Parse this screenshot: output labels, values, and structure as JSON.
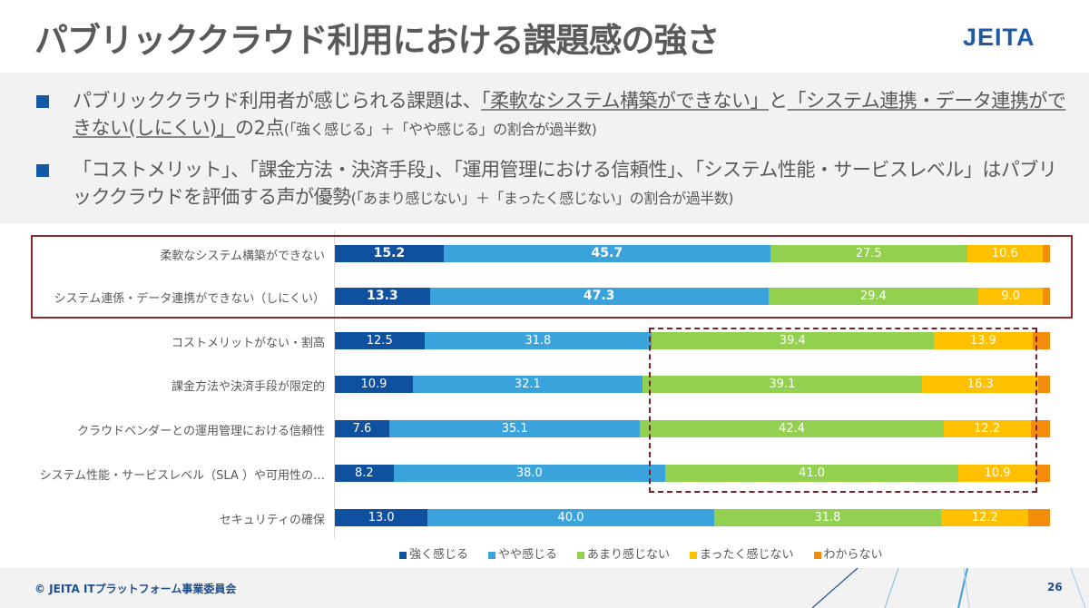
{
  "header": {
    "title": "パブリッククラウド利用における課題感の強さ",
    "logo": "JEITA"
  },
  "summary": {
    "bullets": [
      {
        "parts": [
          {
            "text": "パブリッククラウド利用者が感じられる課題は、",
            "style": "normal"
          },
          {
            "text": "「柔軟なシステム構築ができない」",
            "style": "underline"
          },
          {
            "text": "と",
            "style": "normal"
          },
          {
            "text": "「システム連携・データ連携ができない(しにくい)」",
            "style": "underline"
          },
          {
            "text": "の2点",
            "style": "normal"
          },
          {
            "text": "(「強く感じる」＋「やや感じる」の割合が過半数)",
            "style": "small"
          }
        ]
      },
      {
        "parts": [
          {
            "text": "「コストメリット」、「課金方法・決済手段」、「運用管理における信頼性」、「システム性能・サービスレベル」はパブリッククラウドを評価する声が優勢",
            "style": "normal"
          },
          {
            "text": "(「あまり感じない」＋「まったく感じない」の割合が過半数)",
            "style": "small"
          }
        ]
      }
    ]
  },
  "chart_data": {
    "type": "bar",
    "orientation": "horizontal",
    "stacked": true,
    "percent": true,
    "xlim": [
      0,
      100
    ],
    "categories": [
      "柔軟なシステム構築ができない",
      "システム連係・データ連携ができない（しにくい）",
      "コストメリットがない・割高",
      "課金方法や決済手段が限定的",
      "クラウドベンダーとの運用管理における信頼性",
      "システム性能・サービスレベル（SLA ）や可用性の…",
      "セキュリティの確保"
    ],
    "series": [
      {
        "name": "強く感じる",
        "color": "#0f519e",
        "values": [
          15.2,
          13.3,
          12.5,
          10.9,
          7.6,
          8.2,
          13.0
        ]
      },
      {
        "name": "やや感じる",
        "color": "#3aa3dc",
        "values": [
          45.7,
          47.3,
          31.8,
          32.1,
          35.1,
          38.0,
          40.0
        ]
      },
      {
        "name": "あまり感じない",
        "color": "#92d050",
        "values": [
          27.5,
          29.4,
          39.4,
          39.1,
          42.4,
          41.0,
          31.8
        ]
      },
      {
        "name": "まったく感じない",
        "color": "#ffc000",
        "values": [
          10.6,
          9.0,
          13.9,
          16.3,
          12.2,
          10.9,
          12.2
        ]
      },
      {
        "name": "わからない",
        "color": "#f38b0b",
        "values": [
          1.0,
          1.0,
          2.4,
          1.6,
          2.7,
          1.9,
          3.0
        ]
      }
    ],
    "data_labels_shown_for_series": [
      "強く感じる",
      "やや感じる",
      "あまり感じない",
      "まったく感じない"
    ],
    "bold_label_rows": [
      0,
      1
    ],
    "highlights": [
      {
        "type": "solid-box",
        "rows": [
          0,
          1
        ]
      },
      {
        "type": "dashed-box",
        "rows": [
          2,
          3,
          4,
          5
        ],
        "series": [
          "あまり感じない",
          "まったく感じない"
        ]
      }
    ],
    "legend": "bottom",
    "title": "",
    "xlabel": "",
    "ylabel": ""
  },
  "footer": {
    "copyright": "© JEITA  ITプラットフォーム事業委員会",
    "page_number": "26"
  }
}
